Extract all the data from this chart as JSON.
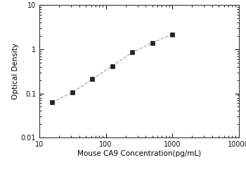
{
  "x": [
    15.6,
    31.25,
    62.5,
    125,
    250,
    500,
    1000
  ],
  "y": [
    0.063,
    0.105,
    0.21,
    0.42,
    0.85,
    1.4,
    2.2
  ],
  "xlim": [
    10,
    10000
  ],
  "ylim": [
    0.01,
    10
  ],
  "xlabel": "Mouse CA9 Concentration(pg/mL)",
  "ylabel": "Optical Density",
  "line_color": "#aaaaaa",
  "marker_color": "#222222",
  "marker": "s",
  "marker_size": 4,
  "line_style": "--",
  "line_width": 0.9,
  "background_color": "#ffffff",
  "title": "",
  "tick_labelsize": 7,
  "xlabel_fontsize": 7.5,
  "ylabel_fontsize": 7.5
}
